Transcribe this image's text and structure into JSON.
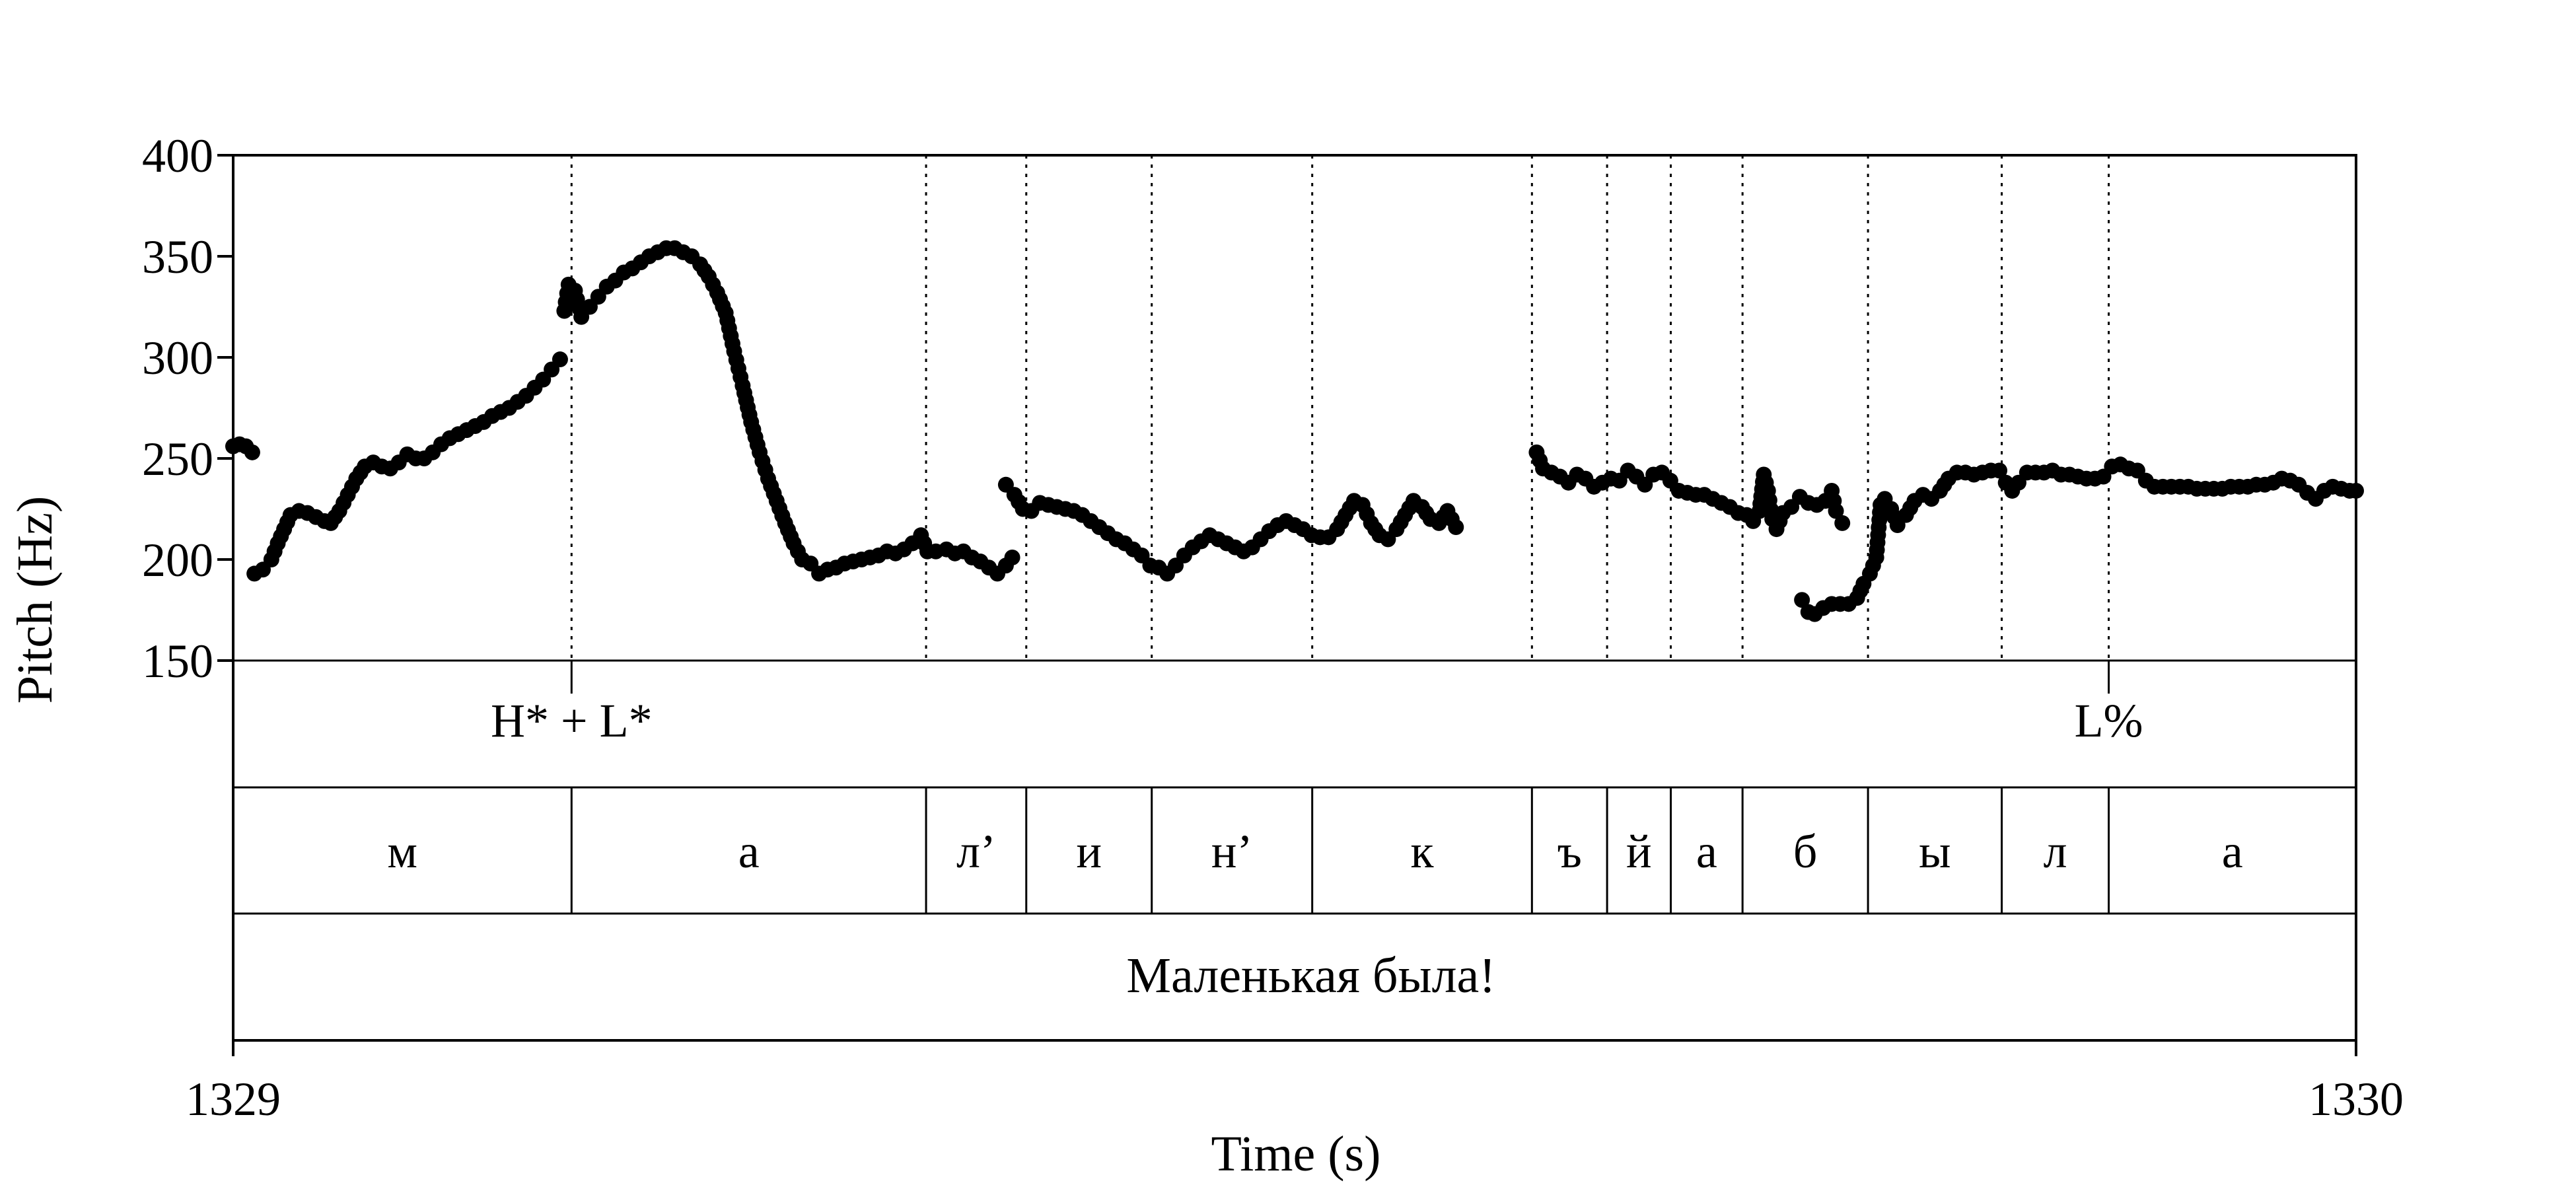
{
  "chart_data": {
    "type": "scatter",
    "title": "",
    "xlabel": "Time (s)",
    "ylabel": "Pitch (Hz)",
    "xlim": [
      1329,
      1330
    ],
    "ylim": [
      150,
      400
    ],
    "x_ticks": [
      "1329",
      "1330"
    ],
    "y_ticks": [
      "150",
      "200",
      "250",
      "300",
      "350",
      "400"
    ],
    "grid": false,
    "legend": "none",
    "marker_color": "#000000",
    "boundaries": [
      1329.1594,
      1329.3264,
      1329.3736,
      1329.4327,
      1329.5083,
      1329.6118,
      1329.6472,
      1329.6772,
      1329.711,
      1329.7701,
      1329.8331,
      1329.8835
    ],
    "tones": [
      {
        "label": "H* + L*",
        "time": 1329.1594
      },
      {
        "label": "L%",
        "time": 1329.8835
      }
    ],
    "segments": [
      {
        "label": "м",
        "start": 1329.0,
        "end": 1329.1594
      },
      {
        "label": "а",
        "start": 1329.1594,
        "end": 1329.3264
      },
      {
        "label": "л’",
        "start": 1329.3264,
        "end": 1329.3736
      },
      {
        "label": "и",
        "start": 1329.3736,
        "end": 1329.4327
      },
      {
        "label": "н’",
        "start": 1329.4327,
        "end": 1329.5083
      },
      {
        "label": "к",
        "start": 1329.5083,
        "end": 1329.6118
      },
      {
        "label": "ъ",
        "start": 1329.6118,
        "end": 1329.6472
      },
      {
        "label": "й",
        "start": 1329.6472,
        "end": 1329.6772
      },
      {
        "label": "а",
        "start": 1329.6772,
        "end": 1329.711
      },
      {
        "label": "б",
        "start": 1329.711,
        "end": 1329.7701
      },
      {
        "label": "ы",
        "start": 1329.7701,
        "end": 1329.8331
      },
      {
        "label": "л",
        "start": 1329.8331,
        "end": 1329.8835
      },
      {
        "label": "а",
        "start": 1329.8835,
        "end": 1330.0
      }
    ],
    "sentence": "Маленькая была!",
    "pitch_contours": [
      [
        [
          1329.0,
          256
        ],
        [
          1329.003,
          257
        ],
        [
          1329.006,
          256
        ],
        [
          1329.009,
          253
        ]
      ],
      [
        [
          1329.01,
          193
        ],
        [
          1329.014,
          195
        ],
        [
          1329.018,
          200
        ],
        [
          1329.021,
          208
        ],
        [
          1329.024,
          215
        ],
        [
          1329.027,
          222
        ],
        [
          1329.031,
          224
        ],
        [
          1329.035,
          223
        ],
        [
          1329.039,
          221
        ],
        [
          1329.043,
          219
        ],
        [
          1329.046,
          218
        ],
        [
          1329.05,
          224
        ],
        [
          1329.054,
          232
        ],
        [
          1329.058,
          240
        ],
        [
          1329.062,
          246
        ],
        [
          1329.066,
          248
        ],
        [
          1329.07,
          246
        ],
        [
          1329.074,
          245
        ],
        [
          1329.078,
          248
        ],
        [
          1329.082,
          252
        ],
        [
          1329.086,
          250
        ],
        [
          1329.09,
          250
        ],
        [
          1329.094,
          253
        ],
        [
          1329.098,
          257
        ],
        [
          1329.102,
          260
        ],
        [
          1329.106,
          262
        ],
        [
          1329.11,
          264
        ],
        [
          1329.114,
          266
        ],
        [
          1329.118,
          268
        ],
        [
          1329.122,
          271
        ],
        [
          1329.126,
          273
        ],
        [
          1329.13,
          275
        ],
        [
          1329.134,
          278
        ],
        [
          1329.138,
          281
        ],
        [
          1329.142,
          285
        ],
        [
          1329.146,
          289
        ],
        [
          1329.15,
          294
        ],
        [
          1329.154,
          299
        ]
      ],
      [
        [
          1329.156,
          323
        ],
        [
          1329.158,
          336
        ],
        [
          1329.161,
          333
        ],
        [
          1329.164,
          320
        ],
        [
          1329.168,
          325
        ],
        [
          1329.172,
          330
        ],
        [
          1329.176,
          335
        ],
        [
          1329.18,
          338
        ],
        [
          1329.184,
          342
        ],
        [
          1329.188,
          344
        ],
        [
          1329.192,
          347
        ],
        [
          1329.196,
          350
        ],
        [
          1329.2,
          352
        ],
        [
          1329.204,
          354
        ],
        [
          1329.208,
          354
        ],
        [
          1329.212,
          352
        ],
        [
          1329.216,
          350
        ],
        [
          1329.22,
          346
        ],
        [
          1329.224,
          340
        ],
        [
          1329.228,
          332
        ],
        [
          1329.232,
          322
        ],
        [
          1329.236,
          303
        ],
        [
          1329.24,
          286
        ],
        [
          1329.244,
          268
        ],
        [
          1329.248,
          253
        ],
        [
          1329.252,
          240
        ],
        [
          1329.256,
          229
        ],
        [
          1329.26,
          218
        ],
        [
          1329.264,
          208
        ],
        [
          1329.268,
          200
        ],
        [
          1329.272,
          198
        ],
        [
          1329.276,
          193
        ],
        [
          1329.28,
          195
        ],
        [
          1329.284,
          196
        ],
        [
          1329.288,
          198
        ],
        [
          1329.292,
          199
        ],
        [
          1329.296,
          200
        ],
        [
          1329.3,
          201
        ],
        [
          1329.304,
          202
        ],
        [
          1329.308,
          204
        ],
        [
          1329.312,
          203
        ],
        [
          1329.316,
          205
        ],
        [
          1329.32,
          208
        ],
        [
          1329.324,
          212
        ],
        [
          1329.327,
          204
        ],
        [
          1329.331,
          204
        ],
        [
          1329.336,
          205
        ],
        [
          1329.34,
          203
        ],
        [
          1329.344,
          204
        ],
        [
          1329.348,
          201
        ],
        [
          1329.352,
          199
        ],
        [
          1329.356,
          196
        ],
        [
          1329.36,
          193
        ],
        [
          1329.364,
          197
        ],
        [
          1329.367,
          201
        ]
      ],
      [
        [
          1329.364,
          237
        ],
        [
          1329.368,
          232
        ],
        [
          1329.372,
          225
        ],
        [
          1329.376,
          224
        ],
        [
          1329.38,
          228
        ],
        [
          1329.384,
          227
        ],
        [
          1329.388,
          226
        ],
        [
          1329.392,
          225
        ],
        [
          1329.396,
          224
        ],
        [
          1329.4,
          222
        ],
        [
          1329.404,
          219
        ],
        [
          1329.408,
          216
        ],
        [
          1329.412,
          213
        ],
        [
          1329.416,
          210
        ],
        [
          1329.42,
          208
        ],
        [
          1329.424,
          205
        ],
        [
          1329.428,
          202
        ],
        [
          1329.432,
          197
        ],
        [
          1329.436,
          196
        ],
        [
          1329.44,
          193
        ],
        [
          1329.444,
          197
        ],
        [
          1329.448,
          202
        ],
        [
          1329.452,
          206
        ],
        [
          1329.456,
          209
        ],
        [
          1329.46,
          212
        ],
        [
          1329.464,
          210
        ],
        [
          1329.468,
          208
        ],
        [
          1329.472,
          206
        ],
        [
          1329.476,
          204
        ],
        [
          1329.48,
          206
        ],
        [
          1329.484,
          210
        ],
        [
          1329.488,
          214
        ],
        [
          1329.492,
          217
        ],
        [
          1329.496,
          219
        ],
        [
          1329.5,
          217
        ],
        [
          1329.504,
          215
        ],
        [
          1329.508,
          212
        ],
        [
          1329.512,
          211
        ],
        [
          1329.516,
          211
        ],
        [
          1329.52,
          215
        ],
        [
          1329.524,
          222
        ],
        [
          1329.528,
          229
        ],
        [
          1329.532,
          227
        ],
        [
          1329.536,
          218
        ],
        [
          1329.54,
          212
        ],
        [
          1329.544,
          210
        ],
        [
          1329.548,
          215
        ],
        [
          1329.552,
          222
        ],
        [
          1329.556,
          229
        ],
        [
          1329.56,
          226
        ],
        [
          1329.564,
          220
        ],
        [
          1329.568,
          218
        ],
        [
          1329.572,
          224
        ],
        [
          1329.574,
          220
        ],
        [
          1329.576,
          216
        ]
      ],
      [
        [
          1329.614,
          253
        ],
        [
          1329.617,
          245
        ],
        [
          1329.621,
          243
        ],
        [
          1329.625,
          241
        ],
        [
          1329.629,
          238
        ],
        [
          1329.633,
          242
        ],
        [
          1329.637,
          240
        ],
        [
          1329.641,
          236
        ],
        [
          1329.645,
          238
        ],
        [
          1329.649,
          240
        ],
        [
          1329.653,
          239
        ],
        [
          1329.657,
          244
        ],
        [
          1329.661,
          241
        ],
        [
          1329.665,
          237
        ],
        [
          1329.669,
          242
        ],
        [
          1329.673,
          243
        ],
        [
          1329.677,
          239
        ],
        [
          1329.681,
          234
        ],
        [
          1329.685,
          233
        ],
        [
          1329.689,
          232
        ],
        [
          1329.693,
          232
        ],
        [
          1329.697,
          230
        ],
        [
          1329.701,
          228
        ],
        [
          1329.705,
          226
        ],
        [
          1329.709,
          223
        ],
        [
          1329.713,
          222
        ],
        [
          1329.716,
          219
        ],
        [
          1329.719,
          224
        ],
        [
          1329.721,
          242
        ],
        [
          1329.723,
          234
        ],
        [
          1329.725,
          220
        ],
        [
          1329.727,
          215
        ],
        [
          1329.73,
          223
        ],
        [
          1329.734,
          226
        ],
        [
          1329.738,
          231
        ],
        [
          1329.742,
          228
        ],
        [
          1329.746,
          227
        ],
        [
          1329.75,
          229
        ],
        [
          1329.753,
          234
        ],
        [
          1329.755,
          224
        ],
        [
          1329.758,
          218
        ]
      ],
      [
        [
          1329.739,
          180
        ],
        [
          1329.742,
          174
        ],
        [
          1329.745,
          173
        ],
        [
          1329.749,
          176
        ],
        [
          1329.753,
          178
        ],
        [
          1329.757,
          178
        ],
        [
          1329.761,
          178
        ],
        [
          1329.765,
          181
        ],
        [
          1329.768,
          188
        ],
        [
          1329.771,
          193
        ],
        [
          1329.774,
          201
        ],
        [
          1329.776,
          227
        ],
        [
          1329.778,
          230
        ],
        [
          1329.781,
          225
        ],
        [
          1329.784,
          217
        ],
        [
          1329.788,
          222
        ],
        [
          1329.792,
          229
        ],
        [
          1329.796,
          232
        ],
        [
          1329.8,
          230
        ],
        [
          1329.804,
          234
        ],
        [
          1329.808,
          240
        ],
        [
          1329.812,
          243
        ],
        [
          1329.816,
          243
        ],
        [
          1329.82,
          242
        ],
        [
          1329.824,
          243
        ],
        [
          1329.828,
          244
        ],
        [
          1329.832,
          244
        ],
        [
          1329.835,
          238
        ],
        [
          1329.838,
          234
        ],
        [
          1329.841,
          238
        ],
        [
          1329.845,
          243
        ],
        [
          1329.849,
          243
        ],
        [
          1329.853,
          243
        ],
        [
          1329.857,
          244
        ],
        [
          1329.861,
          242
        ],
        [
          1329.865,
          242
        ],
        [
          1329.869,
          241
        ],
        [
          1329.873,
          240
        ],
        [
          1329.877,
          240
        ],
        [
          1329.881,
          241
        ],
        [
          1329.885,
          246
        ],
        [
          1329.889,
          247
        ],
        [
          1329.893,
          245
        ],
        [
          1329.897,
          244
        ],
        [
          1329.901,
          239
        ],
        [
          1329.905,
          236
        ],
        [
          1329.909,
          236
        ],
        [
          1329.913,
          236
        ],
        [
          1329.917,
          236
        ],
        [
          1329.921,
          236
        ],
        [
          1329.925,
          235
        ],
        [
          1329.929,
          235
        ],
        [
          1329.933,
          235
        ],
        [
          1329.937,
          235
        ],
        [
          1329.941,
          236
        ],
        [
          1329.945,
          236
        ],
        [
          1329.949,
          236
        ],
        [
          1329.953,
          237
        ],
        [
          1329.957,
          237
        ],
        [
          1329.961,
          238
        ],
        [
          1329.965,
          240
        ],
        [
          1329.969,
          239
        ],
        [
          1329.973,
          237
        ],
        [
          1329.977,
          233
        ],
        [
          1329.981,
          230
        ],
        [
          1329.985,
          234
        ],
        [
          1329.989,
          236
        ],
        [
          1329.993,
          235
        ],
        [
          1329.997,
          234
        ],
        [
          1330.0,
          234
        ]
      ]
    ]
  }
}
